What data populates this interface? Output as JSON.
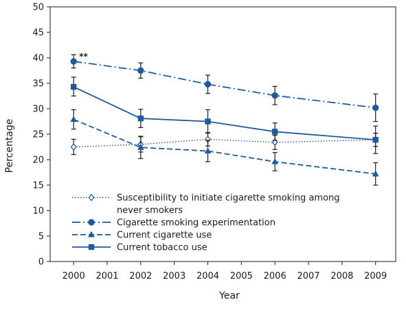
{
  "chart_data": {
    "type": "line",
    "xlabel": "Year",
    "ylabel": "Percentage",
    "xlim": [
      1999.3,
      2009.6
    ],
    "ylim": [
      0,
      50
    ],
    "x_ticks": [
      2000,
      2001,
      2002,
      2003,
      2004,
      2005,
      2006,
      2007,
      2008,
      2009
    ],
    "y_ticks": [
      0,
      5,
      10,
      15,
      20,
      25,
      30,
      35,
      40,
      45,
      50
    ],
    "x_tick_labels": [
      "2000",
      "2001",
      "2002",
      "2003",
      "2004",
      "2005",
      "2006",
      "2007",
      "2008",
      "2009"
    ],
    "y_tick_labels": [
      "0",
      "5",
      "10",
      "15",
      "20",
      "25",
      "30",
      "35",
      "40",
      "45",
      "50"
    ],
    "grid": false,
    "legend_position": "bottom-left",
    "color": "#1f5a9e",
    "series": [
      {
        "name": "Susceptibility to initiate cigarette smoking among never smokers",
        "legend_lines": [
          "Susceptibility to initiate cigarette smoking among",
          "never smokers"
        ],
        "line_style": "dotted",
        "marker": "diamond-open",
        "x": [
          2000,
          2002,
          2004,
          2006,
          2009
        ],
        "y": [
          22.5,
          23.0,
          24.0,
          23.4,
          23.9
        ],
        "err_low": [
          21.0,
          21.5,
          22.7,
          22.0,
          22.6
        ],
        "err_high": [
          24.0,
          24.5,
          25.3,
          24.8,
          25.2
        ]
      },
      {
        "name": "Cigarette smoking experimentation",
        "legend_lines": [
          "Cigarette smoking experimentation"
        ],
        "line_style": "dash-dot",
        "marker": "circle",
        "x": [
          2000,
          2002,
          2004,
          2006,
          2009
        ],
        "y": [
          39.3,
          37.5,
          34.8,
          32.6,
          30.2
        ],
        "err_low": [
          38.0,
          36.0,
          33.0,
          30.8,
          27.5
        ],
        "err_high": [
          40.6,
          39.0,
          36.6,
          34.4,
          32.9
        ]
      },
      {
        "name": "Current cigarette use",
        "legend_lines": [
          "Current cigarette use"
        ],
        "line_style": "dashed",
        "marker": "triangle",
        "x": [
          2000,
          2002,
          2004,
          2006,
          2009
        ],
        "y": [
          27.9,
          22.4,
          21.7,
          19.6,
          17.2
        ],
        "err_low": [
          26.0,
          20.2,
          19.6,
          17.8,
          15.0
        ],
        "err_high": [
          29.8,
          24.6,
          23.8,
          21.4,
          19.4
        ]
      },
      {
        "name": "Current tobacco use",
        "legend_lines": [
          "Current tobacco use"
        ],
        "line_style": "solid",
        "marker": "square",
        "x": [
          2000,
          2002,
          2004,
          2006,
          2009
        ],
        "y": [
          34.3,
          28.1,
          27.5,
          25.5,
          23.9
        ],
        "err_low": [
          32.5,
          26.3,
          25.2,
          23.8,
          21.2
        ],
        "err_high": [
          36.2,
          29.9,
          29.8,
          27.2,
          26.6
        ]
      }
    ],
    "annotations": [
      {
        "text": "**",
        "x": 2000,
        "y": 39.3
      }
    ]
  }
}
